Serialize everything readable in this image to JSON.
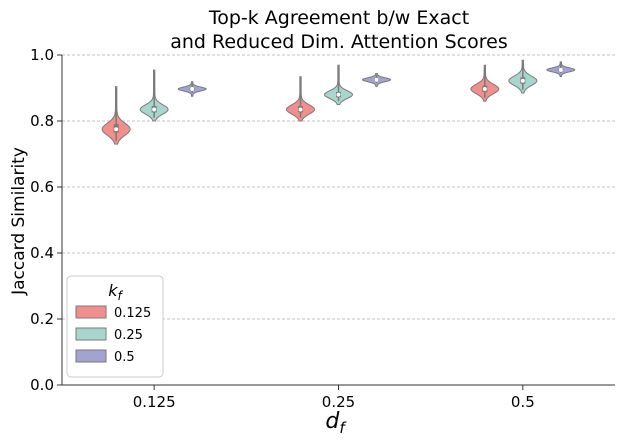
{
  "chart_data": {
    "type": "violin",
    "title": [
      "Top-k Agreement b/w Exact",
      "and Reduced Dim. Attention Scores"
    ],
    "xlabel": "d",
    "xlabel_sub": "f",
    "ylabel": "Jaccard Similarity",
    "ylim": [
      0.0,
      1.0
    ],
    "yticks": [
      "0.0",
      "0.2",
      "0.4",
      "0.6",
      "0.8",
      "1.0"
    ],
    "grid": "y-dashed",
    "categories": [
      "0.125",
      "0.25",
      "0.5"
    ],
    "legend": {
      "title": "k",
      "title_sub": "f",
      "placement": "lower-left"
    },
    "series": [
      {
        "name": "0.125",
        "color": "#f28e8c",
        "stats": [
          {
            "min": 0.74,
            "q1": 0.765,
            "median": 0.775,
            "q3": 0.79,
            "max": 0.9
          },
          {
            "min": 0.81,
            "q1": 0.826,
            "median": 0.835,
            "q3": 0.845,
            "max": 0.93
          },
          {
            "min": 0.87,
            "q1": 0.888,
            "median": 0.897,
            "q3": 0.907,
            "max": 0.965
          }
        ]
      },
      {
        "name": "0.25",
        "color": "#a8d5cc",
        "stats": [
          {
            "min": 0.81,
            "q1": 0.826,
            "median": 0.835,
            "q3": 0.845,
            "max": 0.95
          },
          {
            "min": 0.86,
            "q1": 0.872,
            "median": 0.88,
            "q3": 0.888,
            "max": 0.965
          },
          {
            "min": 0.895,
            "q1": 0.913,
            "median": 0.922,
            "q3": 0.932,
            "max": 0.98
          }
        ]
      },
      {
        "name": "0.5",
        "color": "#a3a3d1",
        "stats": [
          {
            "min": 0.885,
            "q1": 0.893,
            "median": 0.897,
            "q3": 0.901,
            "max": 0.915
          },
          {
            "min": 0.915,
            "q1": 0.921,
            "median": 0.925,
            "q3": 0.929,
            "max": 0.94
          },
          {
            "min": 0.945,
            "q1": 0.951,
            "median": 0.955,
            "q3": 0.959,
            "max": 0.975
          }
        ]
      }
    ]
  }
}
